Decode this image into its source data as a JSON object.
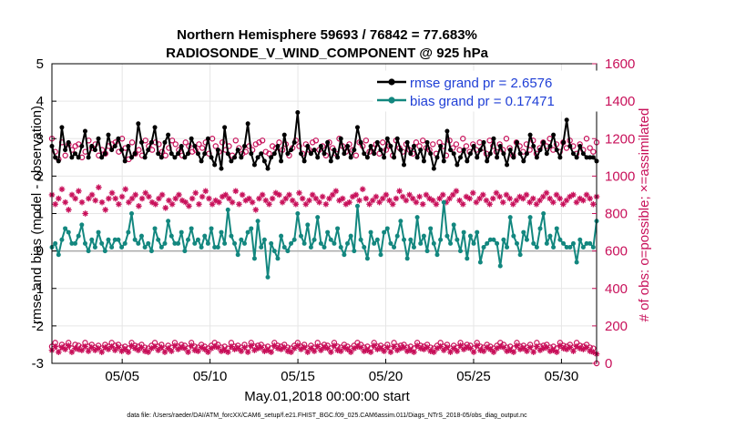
{
  "chart_data": {
    "type": "line",
    "title": "Northern Hemisphere 59693 / 76842 = 77.683%",
    "subtitle": "RADIOSONDE_V_WIND_COMPONENT @ 925 hPa",
    "xlabel": "May.01,2018 00:00:00 start",
    "ylabel": "rmse and bias (model - observation)",
    "ylabel_right": "# of obs: o=possible; ×=assimilated",
    "footer": "data file: /Users/raeder/DAI/ATM_forcXX/CAM6_setup/f.e21.FHIST_BGC.f09_025.CAM6assim.011/Diags_NTrS_2018-05/obs_diag_output.nc",
    "xlim": [
      1,
      32
    ],
    "ylim": [
      -3,
      5
    ],
    "ylim_right": [
      0,
      1600
    ],
    "grid": true,
    "legend_position": "top-right",
    "colors": {
      "rmse": "#000000",
      "bias": "#13877f",
      "obs": "#c8105a",
      "zero": "#aaaaaa",
      "grid": "#e6e6e6",
      "legend_text": "#1f3fd6"
    },
    "x_ticks": [
      {
        "value": 5,
        "label": "05/05"
      },
      {
        "value": 10,
        "label": "05/10"
      },
      {
        "value": 15,
        "label": "05/15"
      },
      {
        "value": 20,
        "label": "05/20"
      },
      {
        "value": 25,
        "label": "05/25"
      },
      {
        "value": 30,
        "label": "05/30"
      }
    ],
    "y_ticks": [
      "-3",
      "-2",
      "-1",
      "0",
      "1",
      "2",
      "3",
      "4",
      "5"
    ],
    "y_ticks_right": [
      "0",
      "200",
      "400",
      "600",
      "800",
      "1000",
      "1200",
      "1400",
      "1600"
    ],
    "series": [
      {
        "name": "rmse grand pr = 2.6576",
        "key": "rmse",
        "marker": "filled-circle",
        "values": [
          2.8,
          2.5,
          2.4,
          3.3,
          2.7,
          2.9,
          2.5,
          2.6,
          2.5,
          2.8,
          3.2,
          2.5,
          2.8,
          2.7,
          3.0,
          2.5,
          2.6,
          3.1,
          2.7,
          2.8,
          3.0,
          2.7,
          2.4,
          2.8,
          2.5,
          2.6,
          3.4,
          2.9,
          2.5,
          2.7,
          2.9,
          3.3,
          2.6,
          2.5,
          2.9,
          3.1,
          2.6,
          2.5,
          2.6,
          2.8,
          2.5,
          2.6,
          3.0,
          2.8,
          2.6,
          2.4,
          2.6,
          3.0,
          2.5,
          2.3,
          2.7,
          2.2,
          3.3,
          2.6,
          2.4,
          2.5,
          2.7,
          2.5,
          2.8,
          3.4,
          2.6,
          2.3,
          2.5,
          2.6,
          2.4,
          2.2,
          2.5,
          2.6,
          2.8,
          2.4,
          3.1,
          2.6,
          2.7,
          2.9,
          3.7,
          2.6,
          2.4,
          2.8,
          2.6,
          2.7,
          2.5,
          2.8,
          2.6,
          2.9,
          2.4,
          2.7,
          2.5,
          3.0,
          2.6,
          2.8,
          2.5,
          2.7,
          3.3,
          2.9,
          2.6,
          2.5,
          2.8,
          2.6,
          2.9,
          2.7,
          2.5,
          3.0,
          2.8,
          2.5,
          3.0,
          2.7,
          2.3,
          2.9,
          2.6,
          2.8,
          2.5,
          2.7,
          2.4,
          2.9,
          2.6,
          2.2,
          2.5,
          2.8,
          2.4,
          3.2,
          2.7,
          2.6,
          2.3,
          2.5,
          2.7,
          2.4,
          2.6,
          2.8,
          2.5,
          2.7,
          2.9,
          2.4,
          2.6,
          3.0,
          2.5,
          2.8,
          2.6,
          2.3,
          2.7,
          2.5,
          2.9,
          2.6,
          2.4,
          2.6,
          3.1,
          2.8,
          2.5,
          2.7,
          2.9,
          2.6,
          2.8,
          3.1,
          2.7,
          2.5,
          2.9,
          3.5,
          2.8,
          2.6,
          2.5,
          2.8,
          2.6,
          2.5,
          2.5,
          2.5,
          2.4
        ]
      },
      {
        "name": "bias grand pr = 0.17471",
        "key": "bias",
        "marker": "filled-circle",
        "values": [
          0.1,
          0.2,
          -0.1,
          0.3,
          0.6,
          0.5,
          0.2,
          0.2,
          0.4,
          0.7,
          0.2,
          0.0,
          0.3,
          0.1,
          0.5,
          0.2,
          0.0,
          0.3,
          0.1,
          0.3,
          0.3,
          0.1,
          0.2,
          0.5,
          1.0,
          0.3,
          0.2,
          0.4,
          0.1,
          0.2,
          0.0,
          0.6,
          0.3,
          0.1,
          0.2,
          0.8,
          0.4,
          0.2,
          0.2,
          0.5,
          0.0,
          0.3,
          0.6,
          0.2,
          0.3,
          0.1,
          0.4,
          0.2,
          0.6,
          0.1,
          0.1,
          0.5,
          0.2,
          1.1,
          0.4,
          0.2,
          -0.1,
          0.3,
          0.2,
          0.5,
          0.6,
          -0.2,
          0.8,
          0.1,
          0.3,
          -0.7,
          0.2,
          0.0,
          -0.2,
          0.4,
          0.1,
          0.0,
          0.2,
          0.3,
          1.0,
          0.4,
          0.2,
          0.7,
          0.1,
          0.3,
          0.9,
          0.2,
          0.1,
          0.5,
          0.3,
          0.2,
          0.6,
          0.1,
          -0.1,
          0.2,
          0.4,
          0.0,
          1.2,
          0.3,
          0.1,
          -0.2,
          0.5,
          0.2,
          0.3,
          -0.1,
          0.5,
          0.6,
          0.2,
          0.1,
          0.4,
          0.8,
          0.3,
          -0.2,
          0.3,
          0.1,
          0.9,
          0.2,
          0.4,
          0.0,
          0.6,
          0.2,
          -0.1,
          0.3,
          1.3,
          0.4,
          0.2,
          0.7,
          0.3,
          0.0,
          0.5,
          -0.2,
          0.4,
          0.2,
          0.5,
          -0.3,
          0.1,
          0.2,
          0.3,
          0.3,
          0.2,
          -0.4,
          0.3,
          0.1,
          0.9,
          0.4,
          0.2,
          -0.1,
          0.5,
          0.3,
          0.9,
          0.2,
          0.1,
          0.6,
          1.0,
          0.2,
          0.4,
          0.1,
          0.6,
          0.3,
          0.2,
          0.1,
          0.1,
          0.2,
          -0.3,
          0.3,
          0.1,
          0.2,
          0.2,
          0.1,
          0.8
        ]
      }
    ],
    "obs_possible": {
      "name": "possible",
      "marker": "open-circle",
      "values": [
        1200,
        1130,
        1090,
        1180,
        1110,
        1170,
        1140,
        1160,
        1170,
        1100,
        1130,
        1190,
        1150,
        1170,
        1110,
        1140,
        1120,
        1160,
        1170,
        1180,
        1130,
        1200,
        1150,
        1090,
        1180,
        1120,
        1140,
        1110,
        1190,
        1160,
        1140,
        1180,
        1170,
        1130,
        1110,
        1150,
        1190,
        1170,
        1140,
        1110,
        1180,
        1160,
        1130,
        1140,
        1170,
        1150,
        1180,
        1120,
        1200,
        1160,
        1130,
        1180,
        1140,
        1160,
        1110,
        1190,
        1150,
        1120,
        1130,
        1160,
        1140,
        1170,
        1180,
        1190,
        1130,
        1120,
        1160,
        1150,
        1180,
        1140,
        1170,
        1110,
        1150,
        1190,
        1160,
        1120,
        1170,
        1140,
        1180,
        1190,
        1140,
        1160,
        1110,
        1180,
        1150,
        1120,
        1200,
        1160,
        1130,
        1170,
        1140,
        1110,
        1180,
        1160,
        1190,
        1130,
        1150,
        1170,
        1120,
        1180,
        1140,
        1160,
        1110,
        1190,
        1150,
        1130,
        1170,
        1140,
        1120,
        1180,
        1160,
        1190,
        1150,
        1140,
        1170,
        1120,
        1180,
        1160,
        1110,
        1190,
        1150,
        1170,
        1140,
        1200,
        1160,
        1130,
        1170,
        1140,
        1180,
        1150,
        1120,
        1190,
        1160,
        1130,
        1170,
        1140,
        1200,
        1150,
        1110,
        1180,
        1160,
        1130,
        1170,
        1140,
        1190,
        1120,
        1150,
        1180,
        1160,
        1200,
        1140,
        1170,
        1130,
        1180,
        1150,
        1190,
        1160,
        1120,
        1170,
        1140,
        1200,
        1150,
        1130,
        1180
      ]
    },
    "obs_assimilated": {
      "name": "assimilated",
      "marker": "asterisk",
      "values": [
        900,
        850,
        880,
        930,
        860,
        820,
        900,
        880,
        920,
        860,
        800,
        880,
        900,
        870,
        940,
        860,
        820,
        880,
        910,
        880,
        850,
        890,
        930,
        860,
        880,
        900,
        840,
        880,
        910,
        890,
        860,
        850,
        880,
        900,
        830,
        870,
        850,
        880,
        900,
        870,
        860,
        840,
        880,
        910,
        850,
        890,
        920,
        880,
        850,
        870,
        860,
        890,
        900,
        880,
        860,
        920,
        850,
        900,
        870,
        880,
        860,
        820,
        880,
        900,
        870,
        850,
        880,
        910,
        900,
        860,
        880,
        900,
        870,
        850,
        910,
        880,
        850,
        870,
        900,
        880,
        860,
        890,
        850,
        880,
        900,
        920,
        870,
        880,
        850,
        860,
        890,
        900,
        870,
        930,
        880,
        850,
        870,
        890,
        860,
        880,
        900,
        870,
        850,
        880,
        920,
        890,
        870,
        900,
        880,
        860,
        890,
        850,
        900,
        880,
        870,
        850,
        880,
        900,
        860,
        880,
        900,
        920,
        870,
        850,
        890,
        880,
        910,
        860,
        880,
        900,
        870,
        850,
        880,
        910,
        890,
        860,
        900,
        880,
        850,
        870,
        890,
        880,
        900,
        860,
        880,
        850,
        870,
        890,
        910,
        880,
        860,
        900,
        880,
        850,
        870,
        890,
        900,
        860,
        880,
        870,
        900,
        880,
        850,
        890
      ]
    },
    "obs_possible_low": {
      "name": "possible (lower band)",
      "marker": "open-circle",
      "values": [
        90,
        110,
        80,
        100,
        90,
        110,
        80,
        100,
        95,
        85,
        110,
        90,
        100,
        85,
        95,
        80,
        100,
        90,
        110,
        95,
        100,
        85,
        90,
        80,
        110,
        95,
        90,
        100,
        85,
        80,
        95,
        110,
        90,
        100,
        80,
        95,
        85,
        110,
        90,
        100,
        95,
        80,
        110,
        90,
        85,
        100,
        90,
        80,
        95,
        110,
        100,
        85,
        90,
        80,
        110,
        90,
        95,
        85,
        100,
        80,
        110,
        90,
        95,
        100,
        85,
        90,
        80,
        110,
        95,
        90,
        100,
        85,
        80,
        95,
        110,
        90,
        100,
        80,
        95,
        85,
        110,
        90,
        100,
        95,
        80,
        110,
        90,
        85,
        100,
        90,
        80,
        95,
        110,
        100,
        85,
        90,
        80,
        110,
        90,
        95,
        85,
        100,
        80,
        110,
        90,
        95,
        100,
        85,
        90,
        80,
        110,
        95,
        90,
        100,
        85,
        80,
        95,
        110,
        90,
        100,
        80,
        95,
        85,
        110,
        90,
        100,
        95,
        80,
        110,
        90,
        85,
        100,
        90,
        80,
        95,
        110,
        100,
        85,
        90,
        80,
        110,
        90,
        95,
        85,
        100,
        80,
        110,
        90,
        95,
        100,
        85,
        90,
        80,
        110,
        95,
        90,
        100,
        85,
        110,
        95,
        90,
        100,
        85,
        80,
        0
      ]
    },
    "obs_assimilated_low": {
      "name": "assimilated (lower band)",
      "marker": "asterisk",
      "values": [
        70,
        90,
        60,
        85,
        75,
        95,
        60,
        80,
        75,
        70,
        90,
        65,
        85,
        70,
        80,
        60,
        85,
        75,
        90,
        70,
        85,
        65,
        75,
        60,
        95,
        80,
        70,
        85,
        65,
        60,
        80,
        90,
        70,
        85,
        60,
        80,
        65,
        95,
        75,
        85,
        80,
        60,
        95,
        70,
        65,
        85,
        75,
        60,
        80,
        90,
        85,
        65,
        70,
        60,
        90,
        75,
        80,
        65,
        85,
        60,
        95,
        70,
        80,
        85,
        65,
        70,
        60,
        95,
        80,
        75,
        85,
        65,
        60,
        80,
        95,
        75,
        85,
        60,
        80,
        65,
        90,
        70,
        85,
        80,
        60,
        95,
        70,
        65,
        85,
        75,
        60,
        80,
        90,
        85,
        65,
        70,
        60,
        95,
        75,
        80,
        65,
        85,
        60,
        90,
        70,
        80,
        85,
        65,
        70,
        60,
        95,
        80,
        75,
        85,
        65,
        60,
        80,
        90,
        70,
        85,
        60,
        80,
        65,
        95,
        75,
        85,
        80,
        60,
        95,
        70,
        65,
        85,
        75,
        60,
        80,
        90,
        85,
        65,
        70,
        60,
        95,
        75,
        80,
        65,
        85,
        60,
        90,
        70,
        80,
        85,
        65,
        70,
        60,
        95,
        80,
        75,
        85,
        65,
        90,
        80,
        75,
        85,
        65,
        60,
        50
      ]
    }
  }
}
